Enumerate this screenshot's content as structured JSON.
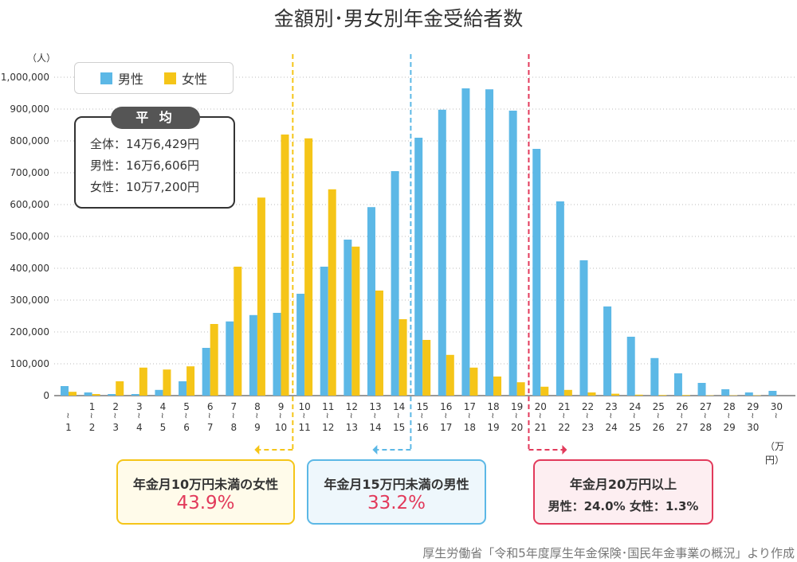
{
  "title": "金額別･男女別年金受給者数",
  "y_unit": "（人）",
  "x_unit": "（万円）",
  "source": "厚生労働省「令和5年度厚生年金保険･国民年金事業の概況」より作成",
  "legend": [
    {
      "name": "男性",
      "color": "#5cb8e6"
    },
    {
      "name": "女性",
      "color": "#f5c518"
    }
  ],
  "average": {
    "tag": "平 均",
    "lines": [
      "全体：14万6,429円",
      "男性：16万6,606円",
      "女性：10万7,200円"
    ]
  },
  "callouts": {
    "women": {
      "title": "年金月10万円未満の女性",
      "value": "43.9%"
    },
    "men": {
      "title": "年金月15万円未満の男性",
      "value": "33.2%"
    },
    "high": {
      "title": "年金月20万円以上",
      "detail": "男性：24.0%  女性：1.3%"
    }
  },
  "chart_data": {
    "type": "bar",
    "ylim": [
      0,
      1000000
    ],
    "yticks": [
      "0",
      "100,000",
      "200,000",
      "300,000",
      "400,000",
      "500,000",
      "600,000",
      "700,000",
      "800,000",
      "900,000",
      "1,000,000"
    ],
    "grid": true,
    "categories": [
      [
        "",
        "1"
      ],
      [
        "1",
        "2"
      ],
      [
        "2",
        "3"
      ],
      [
        "3",
        "4"
      ],
      [
        "4",
        "5"
      ],
      [
        "5",
        "6"
      ],
      [
        "6",
        "7"
      ],
      [
        "7",
        "8"
      ],
      [
        "8",
        "9"
      ],
      [
        "9",
        "10"
      ],
      [
        "10",
        "11"
      ],
      [
        "11",
        "12"
      ],
      [
        "12",
        "13"
      ],
      [
        "13",
        "14"
      ],
      [
        "14",
        "15"
      ],
      [
        "15",
        "16"
      ],
      [
        "16",
        "17"
      ],
      [
        "17",
        "18"
      ],
      [
        "18",
        "19"
      ],
      [
        "19",
        "20"
      ],
      [
        "20",
        "21"
      ],
      [
        "21",
        "22"
      ],
      [
        "22",
        "23"
      ],
      [
        "23",
        "24"
      ],
      [
        "24",
        "25"
      ],
      [
        "25",
        "26"
      ],
      [
        "26",
        "27"
      ],
      [
        "27",
        "28"
      ],
      [
        "28",
        "29"
      ],
      [
        "29",
        "30"
      ],
      [
        "30",
        ""
      ]
    ],
    "series": [
      {
        "name": "男性",
        "color": "#5cb8e6",
        "values": [
          30000,
          10000,
          5000,
          5000,
          18000,
          45000,
          150000,
          233000,
          253000,
          260000,
          320000,
          405000,
          490000,
          592000,
          705000,
          810000,
          898000,
          965000,
          962000,
          895000,
          775000,
          610000,
          425000,
          280000,
          185000,
          118000,
          70000,
          40000,
          20000,
          10000,
          15000
        ]
      },
      {
        "name": "女性",
        "color": "#f5c518",
        "values": [
          12000,
          5000,
          45000,
          88000,
          82000,
          92000,
          225000,
          405000,
          622000,
          820000,
          808000,
          648000,
          468000,
          330000,
          240000,
          175000,
          128000,
          88000,
          60000,
          42000,
          28000,
          18000,
          10000,
          6000,
          3000,
          2000,
          2000,
          1000,
          1000,
          1000,
          0
        ]
      }
    ],
    "markers": [
      {
        "after_index": 9,
        "color": "#f5c518",
        "arrow": "left"
      },
      {
        "after_index": 14,
        "color": "#5cb8e6",
        "arrow": "left"
      },
      {
        "after_index": 19,
        "color": "#e23a5b",
        "arrow": "right"
      }
    ]
  }
}
